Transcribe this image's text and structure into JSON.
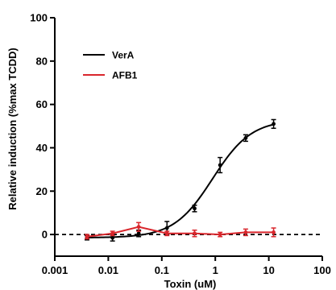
{
  "chart_data": {
    "type": "line",
    "xscale": "log",
    "xlim": [
      0.001,
      100
    ],
    "ylim": [
      -10,
      100
    ],
    "x_ticks": [
      "0.001",
      "0.01",
      "0.1",
      "1",
      "10",
      "100"
    ],
    "y_ticks": [
      "0",
      "20",
      "40",
      "60",
      "80",
      "100"
    ],
    "xlabel": "Toxin (uM)",
    "ylabel": "Relative induction (%max TCDD)",
    "reference_line": {
      "y": 0,
      "style": "dashed"
    },
    "legend_position": "top-left",
    "series": [
      {
        "name": "VerA",
        "color": "#000000",
        "x": [
          0.004,
          0.012,
          0.037,
          0.125,
          0.41,
          1.23,
          3.7,
          12.3
        ],
        "y": [
          -1.5,
          -1.5,
          0.5,
          3,
          12,
          32,
          44.5,
          51
        ],
        "err": [
          1,
          1.5,
          1.5,
          3,
          1.5,
          3.5,
          1.5,
          2
        ],
        "fit": {
          "bottom": -1.5,
          "top": 53,
          "log_ec50": -0.05,
          "hill": 1.2
        }
      },
      {
        "name": "AFB1",
        "color": "#d9262c",
        "x": [
          0.004,
          0.012,
          0.037,
          0.125,
          0.41,
          1.23,
          3.7,
          12.3
        ],
        "y": [
          -1,
          0.5,
          3.5,
          0.5,
          0.5,
          0,
          1,
          1
        ],
        "err": [
          1,
          1,
          2,
          1,
          1.5,
          1,
          1.5,
          2
        ]
      }
    ]
  }
}
